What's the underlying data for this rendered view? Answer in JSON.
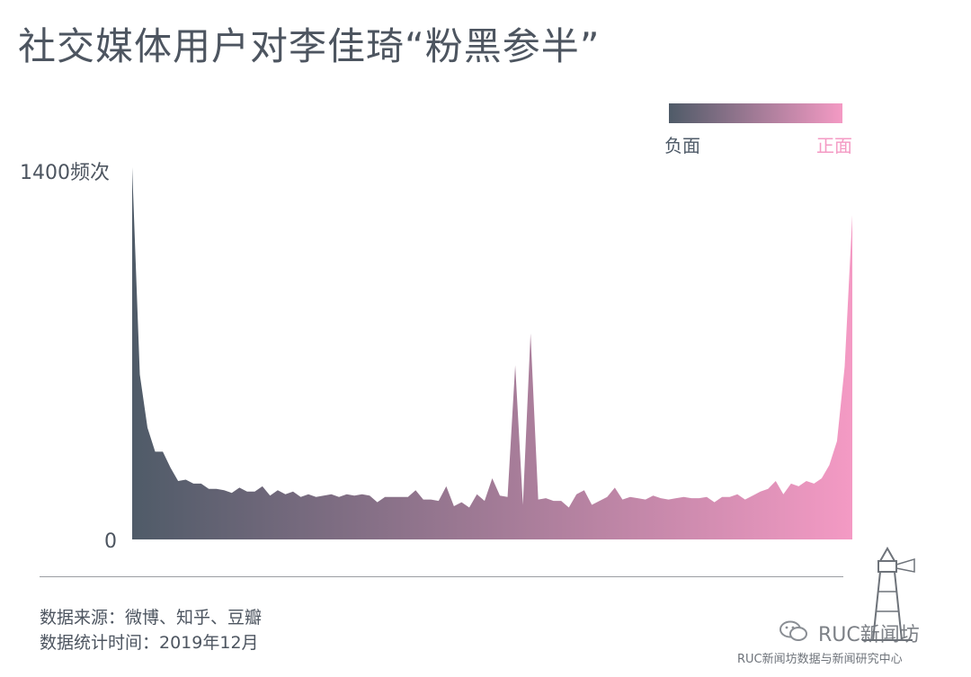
{
  "title": "社交媒体用户对李佳琦“粉黑参半”",
  "legend": {
    "negative_label": "负面",
    "positive_label": "正面",
    "negative_color": "#4f5b68",
    "positive_color": "#f49ac4"
  },
  "y_max_label": "1400频次",
  "y_zero_label": "0",
  "footer": {
    "source": "数据来源：微博、知乎、豆瓣",
    "time": "数据统计时间：2019年12月"
  },
  "brand": {
    "name": "RUC新闻坊",
    "org": "RUC新闻坊数据与新闻研究中心",
    "wechat_icon": "wechat-icon",
    "logo_icon": "lighthouse-icon"
  },
  "chart_data": {
    "type": "area",
    "title": "社交媒体用户对李佳琦“粉黑参半”",
    "xlabel": "",
    "ylabel": "频次",
    "x_range": [
      "负面",
      "正面"
    ],
    "ylim": [
      0,
      1400
    ],
    "grid": false,
    "legend_placement": "top-right",
    "values": [
      1400,
      620,
      420,
      330,
      330,
      270,
      220,
      225,
      210,
      210,
      190,
      190,
      185,
      175,
      195,
      180,
      180,
      200,
      165,
      185,
      170,
      180,
      160,
      170,
      160,
      165,
      170,
      160,
      170,
      165,
      170,
      165,
      140,
      160,
      160,
      160,
      160,
      185,
      150,
      150,
      145,
      200,
      125,
      140,
      120,
      170,
      145,
      230,
      165,
      160,
      655,
      130,
      775,
      150,
      155,
      145,
      145,
      120,
      170,
      185,
      130,
      145,
      160,
      195,
      150,
      160,
      155,
      150,
      165,
      155,
      150,
      155,
      160,
      155,
      155,
      160,
      140,
      160,
      160,
      170,
      150,
      165,
      180,
      190,
      220,
      170,
      210,
      200,
      220,
      210,
      230,
      280,
      370,
      650,
      1220
    ]
  }
}
